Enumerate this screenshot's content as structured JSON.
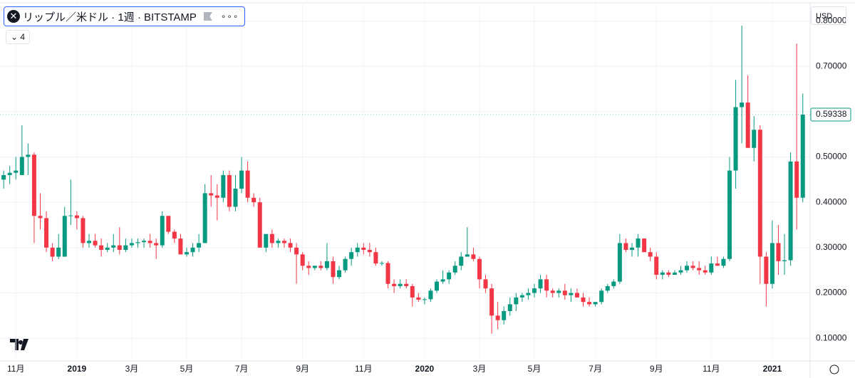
{
  "chart_data": {
    "type": "candlestick",
    "title": "リップル／米ドル · 1週 · BITSTAMP",
    "indicator_count": "4",
    "currency": "USD",
    "up_color": "#089981",
    "down_color": "#f23645",
    "grid": true,
    "ylim": [
      0.05,
      0.84
    ],
    "yticks": [
      {
        "value": 0.1,
        "label": "0.10000"
      },
      {
        "value": 0.2,
        "label": "0.20000"
      },
      {
        "value": 0.3,
        "label": "0.30000"
      },
      {
        "value": 0.4,
        "label": "0.40000"
      },
      {
        "value": 0.5,
        "label": "0.50000"
      },
      {
        "value": 0.6,
        "label": "0.60000"
      },
      {
        "value": 0.7,
        "label": "0.70000"
      },
      {
        "value": 0.8,
        "label": "0.80000"
      }
    ],
    "xlim": [
      -0.6,
      132.2
    ],
    "xticks": [
      {
        "value": 2,
        "label": "11月"
      },
      {
        "value": 12,
        "label": "2019"
      },
      {
        "value": 21,
        "label": "3月"
      },
      {
        "value": 30,
        "label": "5月"
      },
      {
        "value": 39,
        "label": "7月"
      },
      {
        "value": 49,
        "label": "9月"
      },
      {
        "value": 59,
        "label": "11月"
      },
      {
        "value": 69,
        "label": "2020"
      },
      {
        "value": 78,
        "label": "3月"
      },
      {
        "value": 87,
        "label": "5月"
      },
      {
        "value": 97,
        "label": "7月"
      },
      {
        "value": 107,
        "label": "9月"
      },
      {
        "value": 116,
        "label": "11月"
      },
      {
        "value": 126,
        "label": "2021"
      }
    ],
    "ohlc": [
      [
        0.45,
        0.47,
        0.43,
        0.46
      ],
      [
        0.46,
        0.48,
        0.44,
        0.465
      ],
      [
        0.465,
        0.5,
        0.45,
        0.47
      ],
      [
        0.46,
        0.57,
        0.46,
        0.5
      ],
      [
        0.5,
        0.53,
        0.46,
        0.505
      ],
      [
        0.505,
        0.51,
        0.31,
        0.37
      ],
      [
        0.37,
        0.42,
        0.34,
        0.365
      ],
      [
        0.365,
        0.38,
        0.29,
        0.3
      ],
      [
        0.3,
        0.31,
        0.27,
        0.28
      ],
      [
        0.28,
        0.33,
        0.275,
        0.3
      ],
      [
        0.28,
        0.39,
        0.28,
        0.37
      ],
      [
        0.37,
        0.45,
        0.35,
        0.371
      ],
      [
        0.371,
        0.38,
        0.34,
        0.365
      ],
      [
        0.365,
        0.37,
        0.3,
        0.31
      ],
      [
        0.31,
        0.33,
        0.3,
        0.315
      ],
      [
        0.315,
        0.33,
        0.3,
        0.305
      ],
      [
        0.305,
        0.32,
        0.28,
        0.295
      ],
      [
        0.295,
        0.31,
        0.29,
        0.3
      ],
      [
        0.3,
        0.33,
        0.29,
        0.305
      ],
      [
        0.305,
        0.345,
        0.285,
        0.295
      ],
      [
        0.295,
        0.32,
        0.29,
        0.305
      ],
      [
        0.305,
        0.32,
        0.3,
        0.31
      ],
      [
        0.31,
        0.32,
        0.3,
        0.312
      ],
      [
        0.312,
        0.32,
        0.3,
        0.315
      ],
      [
        0.315,
        0.33,
        0.3,
        0.31
      ],
      [
        0.31,
        0.32,
        0.275,
        0.305
      ],
      [
        0.305,
        0.38,
        0.3,
        0.37
      ],
      [
        0.37,
        0.37,
        0.33,
        0.335
      ],
      [
        0.335,
        0.34,
        0.31,
        0.32
      ],
      [
        0.32,
        0.33,
        0.29,
        0.285
      ],
      [
        0.285,
        0.3,
        0.28,
        0.29
      ],
      [
        0.29,
        0.31,
        0.28,
        0.3
      ],
      [
        0.3,
        0.33,
        0.29,
        0.31
      ],
      [
        0.31,
        0.44,
        0.31,
        0.42
      ],
      [
        0.42,
        0.46,
        0.39,
        0.415
      ],
      [
        0.415,
        0.44,
        0.36,
        0.41
      ],
      [
        0.41,
        0.47,
        0.4,
        0.46
      ],
      [
        0.46,
        0.47,
        0.38,
        0.39
      ],
      [
        0.39,
        0.46,
        0.38,
        0.43
      ],
      [
        0.43,
        0.5,
        0.42,
        0.47
      ],
      [
        0.47,
        0.49,
        0.4,
        0.41
      ],
      [
        0.41,
        0.42,
        0.39,
        0.4
      ],
      [
        0.4,
        0.41,
        0.3,
        0.3
      ],
      [
        0.3,
        0.33,
        0.29,
        0.33
      ],
      [
        0.33,
        0.34,
        0.3,
        0.31
      ],
      [
        0.31,
        0.32,
        0.3,
        0.315
      ],
      [
        0.315,
        0.32,
        0.3,
        0.31
      ],
      [
        0.31,
        0.32,
        0.29,
        0.3
      ],
      [
        0.3,
        0.31,
        0.22,
        0.285
      ],
      [
        0.285,
        0.29,
        0.25,
        0.26
      ],
      [
        0.26,
        0.27,
        0.24,
        0.255
      ],
      [
        0.255,
        0.26,
        0.25,
        0.26
      ],
      [
        0.26,
        0.27,
        0.25,
        0.255
      ],
      [
        0.255,
        0.31,
        0.25,
        0.27
      ],
      [
        0.27,
        0.28,
        0.22,
        0.235
      ],
      [
        0.235,
        0.26,
        0.23,
        0.25
      ],
      [
        0.25,
        0.28,
        0.245,
        0.275
      ],
      [
        0.275,
        0.3,
        0.26,
        0.29
      ],
      [
        0.29,
        0.31,
        0.28,
        0.3
      ],
      [
        0.3,
        0.31,
        0.285,
        0.295
      ],
      [
        0.295,
        0.31,
        0.28,
        0.29
      ],
      [
        0.29,
        0.3,
        0.26,
        0.265
      ],
      [
        0.265,
        0.27,
        0.26,
        0.266
      ],
      [
        0.266,
        0.27,
        0.21,
        0.22
      ],
      [
        0.22,
        0.23,
        0.2,
        0.215
      ],
      [
        0.215,
        0.23,
        0.21,
        0.22
      ],
      [
        0.22,
        0.23,
        0.21,
        0.215
      ],
      [
        0.215,
        0.22,
        0.17,
        0.19
      ],
      [
        0.19,
        0.2,
        0.18,
        0.185
      ],
      [
        0.185,
        0.19,
        0.175,
        0.186
      ],
      [
        0.186,
        0.21,
        0.18,
        0.205
      ],
      [
        0.205,
        0.23,
        0.2,
        0.225
      ],
      [
        0.225,
        0.25,
        0.22,
        0.23
      ],
      [
        0.23,
        0.25,
        0.22,
        0.245
      ],
      [
        0.245,
        0.27,
        0.24,
        0.26
      ],
      [
        0.26,
        0.29,
        0.25,
        0.28
      ],
      [
        0.28,
        0.345,
        0.28,
        0.285
      ],
      [
        0.285,
        0.3,
        0.27,
        0.275
      ],
      [
        0.275,
        0.28,
        0.21,
        0.23
      ],
      [
        0.23,
        0.24,
        0.2,
        0.21
      ],
      [
        0.21,
        0.22,
        0.11,
        0.15
      ],
      [
        0.15,
        0.18,
        0.12,
        0.14
      ],
      [
        0.14,
        0.17,
        0.13,
        0.16
      ],
      [
        0.16,
        0.19,
        0.15,
        0.175
      ],
      [
        0.175,
        0.2,
        0.16,
        0.19
      ],
      [
        0.19,
        0.2,
        0.18,
        0.195
      ],
      [
        0.195,
        0.21,
        0.185,
        0.2
      ],
      [
        0.2,
        0.22,
        0.19,
        0.21
      ],
      [
        0.21,
        0.24,
        0.2,
        0.23
      ],
      [
        0.23,
        0.24,
        0.19,
        0.205
      ],
      [
        0.205,
        0.21,
        0.19,
        0.2
      ],
      [
        0.2,
        0.21,
        0.19,
        0.205
      ],
      [
        0.205,
        0.22,
        0.185,
        0.195
      ],
      [
        0.195,
        0.21,
        0.18,
        0.2
      ],
      [
        0.2,
        0.21,
        0.19,
        0.19
      ],
      [
        0.19,
        0.2,
        0.17,
        0.18
      ],
      [
        0.18,
        0.19,
        0.17,
        0.175
      ],
      [
        0.175,
        0.18,
        0.17,
        0.18
      ],
      [
        0.18,
        0.21,
        0.175,
        0.205
      ],
      [
        0.205,
        0.22,
        0.2,
        0.215
      ],
      [
        0.215,
        0.23,
        0.21,
        0.225
      ],
      [
        0.225,
        0.33,
        0.22,
        0.31
      ],
      [
        0.31,
        0.32,
        0.29,
        0.295
      ],
      [
        0.295,
        0.31,
        0.28,
        0.3
      ],
      [
        0.3,
        0.33,
        0.28,
        0.32
      ],
      [
        0.32,
        0.32,
        0.29,
        0.29
      ],
      [
        0.29,
        0.3,
        0.27,
        0.28
      ],
      [
        0.28,
        0.29,
        0.23,
        0.24
      ],
      [
        0.24,
        0.25,
        0.23,
        0.245
      ],
      [
        0.245,
        0.25,
        0.235,
        0.24
      ],
      [
        0.24,
        0.25,
        0.24,
        0.245
      ],
      [
        0.245,
        0.26,
        0.24,
        0.25
      ],
      [
        0.25,
        0.27,
        0.245,
        0.26
      ],
      [
        0.26,
        0.27,
        0.25,
        0.255
      ],
      [
        0.255,
        0.27,
        0.24,
        0.25
      ],
      [
        0.25,
        0.26,
        0.24,
        0.245
      ],
      [
        0.245,
        0.28,
        0.24,
        0.265
      ],
      [
        0.265,
        0.28,
        0.26,
        0.26
      ],
      [
        0.26,
        0.28,
        0.255,
        0.275
      ],
      [
        0.275,
        0.5,
        0.27,
        0.47
      ],
      [
        0.47,
        0.67,
        0.43,
        0.61
      ],
      [
        0.61,
        0.79,
        0.53,
        0.62
      ],
      [
        0.62,
        0.68,
        0.52,
        0.52
      ],
      [
        0.52,
        0.59,
        0.49,
        0.56
      ],
      [
        0.56,
        0.57,
        0.22,
        0.28
      ],
      [
        0.28,
        0.29,
        0.17,
        0.22
      ],
      [
        0.22,
        0.36,
        0.21,
        0.31
      ],
      [
        0.31,
        0.35,
        0.24,
        0.27
      ],
      [
        0.27,
        0.33,
        0.24,
        0.272
      ],
      [
        0.272,
        0.51,
        0.26,
        0.49
      ],
      [
        0.49,
        0.75,
        0.34,
        0.41
      ],
      [
        0.41,
        0.64,
        0.4,
        0.59338
      ]
    ]
  }
}
